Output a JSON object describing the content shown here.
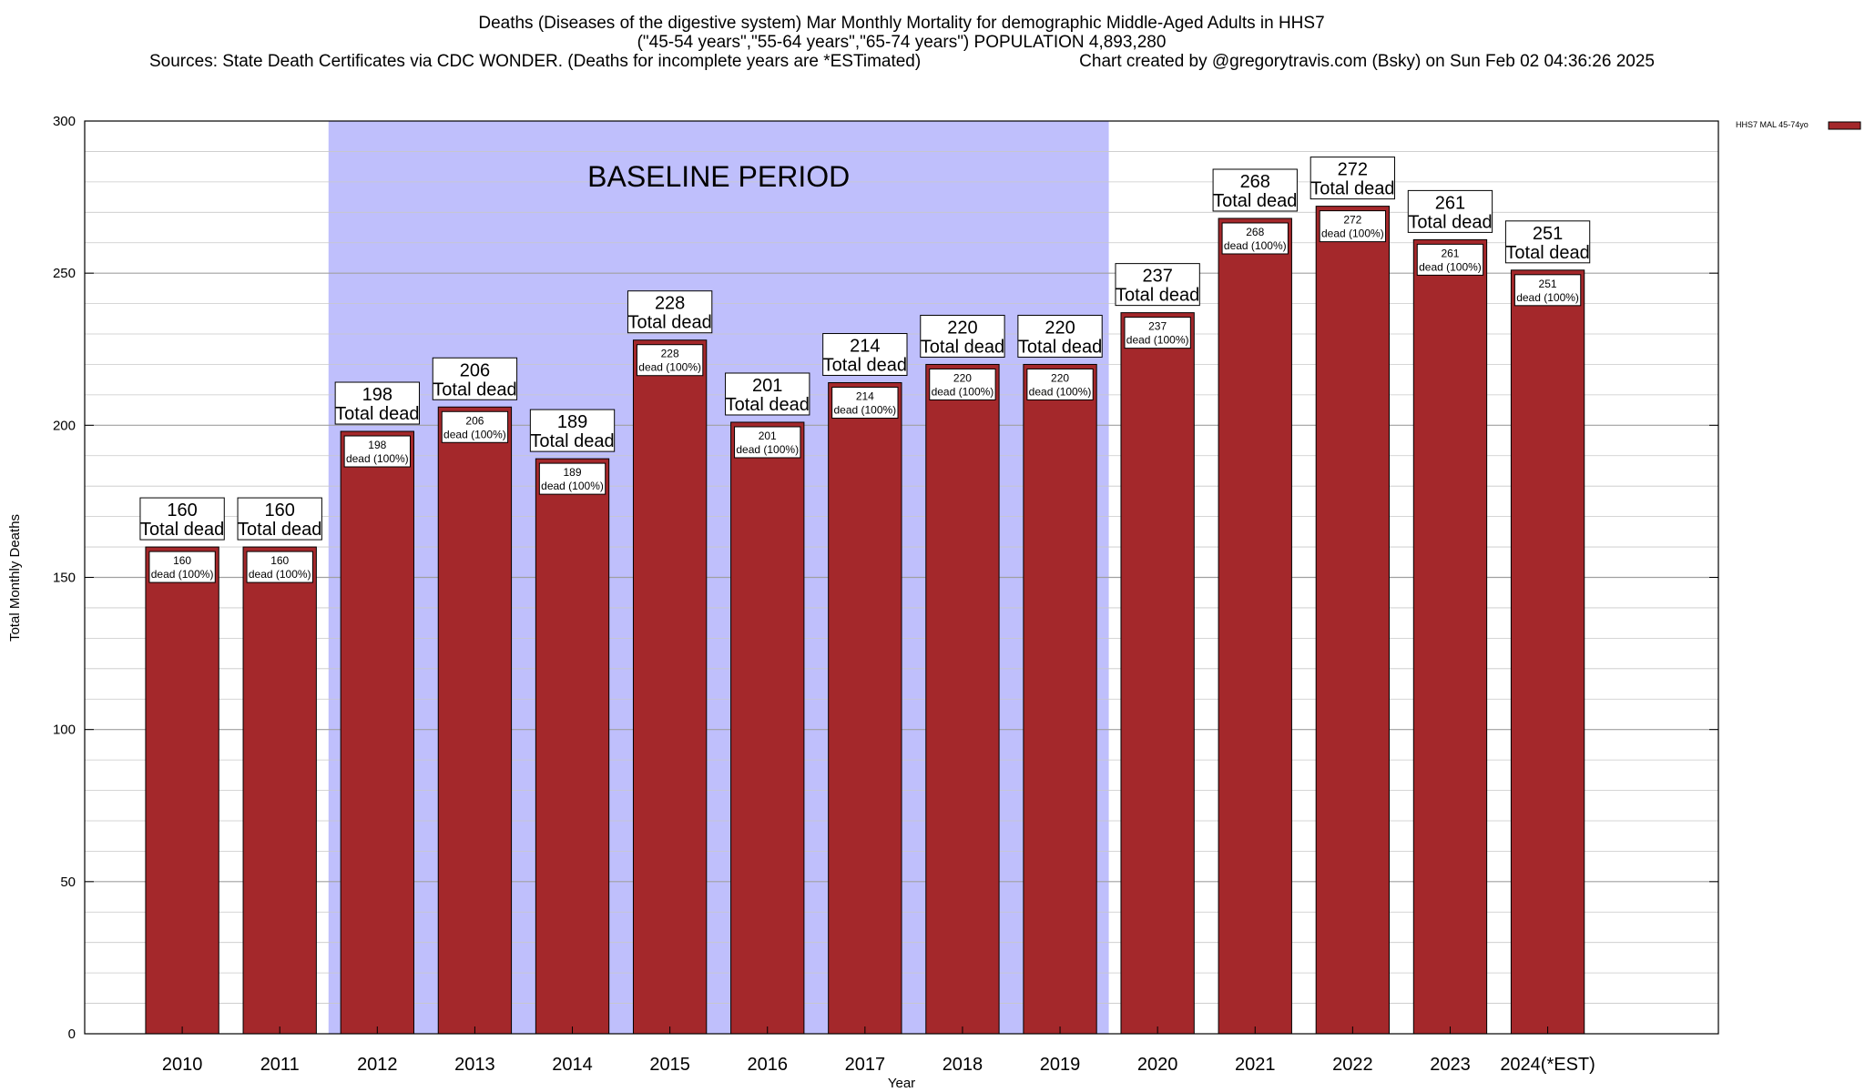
{
  "chart_data": {
    "type": "bar",
    "title_lines": [
      "Deaths (Diseases of the digestive system) Mar Monthly Mortality for demographic Middle-Aged Adults in HHS7",
      "(\"45-54 years\",\"55-64 years\",\"65-74 years\") POPULATION 4,893,280",
      "Sources: State Death Certificates via CDC WONDER. (Deaths for incomplete years are *ESTimated)",
      "Chart created by @gregorytravis.com (Bsky) on Sun Feb 02 04:36:26 2025"
    ],
    "xlabel": "Year",
    "ylabel": "Total Monthly Deaths",
    "categories": [
      "2010",
      "2011",
      "2012",
      "2013",
      "2014",
      "2015",
      "2016",
      "2017",
      "2018",
      "2019",
      "2020",
      "2021",
      "2022",
      "2023",
      "2024(*EST)"
    ],
    "series": [
      {
        "name": "HHS7 MAL 45-74yo",
        "values": [
          160,
          160,
          198,
          206,
          189,
          228,
          201,
          214,
          220,
          220,
          237,
          268,
          272,
          261,
          251
        ]
      }
    ],
    "top_label_suffix": "Total dead",
    "inner_label_suffix": "dead (100%)",
    "ylim": [
      0,
      300
    ],
    "yticks": [
      0,
      50,
      100,
      150,
      200,
      250,
      300
    ],
    "grid": true,
    "baseline": {
      "text": "BASELINE PERIOD",
      "from": "2012",
      "to": "2019"
    },
    "legend_position": "top-right",
    "colors": {
      "bar": "#a4282b",
      "baseline": "#bfbffc",
      "bar_stroke": "#000000"
    }
  }
}
